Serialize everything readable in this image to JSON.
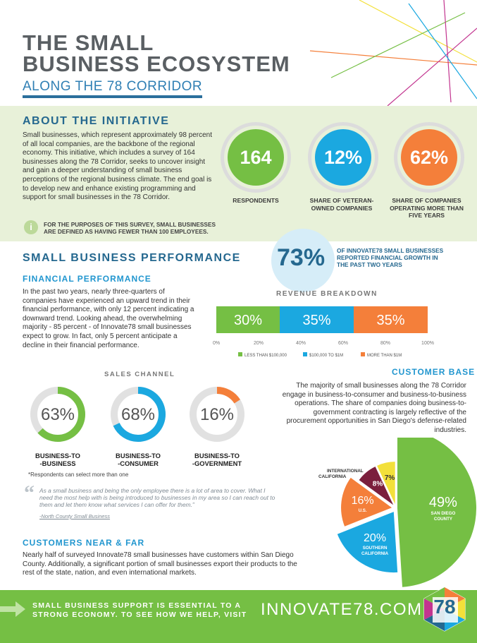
{
  "header": {
    "title_line1": "THE SMALL",
    "title_line2": "BUSINESS ECOSYSTEM",
    "subtitle": "ALONG THE 78 CORRIDOR"
  },
  "initiative": {
    "heading": "ABOUT THE INITIATIVE",
    "body": "Small businesses, which represent approximately 98 percent of all local companies, are the backbone of the regional economy. This initiative, which includes a survey of 164 businesses along the 78 Corridor, seeks to uncover insight and gain a deeper understanding of small business perceptions of the regional business climate. The end goal is to develop new and enhance existing programming and support for small businesses in the 78 Corridor.",
    "note": "FOR THE PURPOSES OF THIS SURVEY, SMALL BUSINESSES ARE DEFINED AS HAVING FEWER THAN 100 EMPLOYEES.",
    "info_icon": "i",
    "stats": [
      {
        "value": "164",
        "label": "RESPONDENTS",
        "color": "#75bf44"
      },
      {
        "value": "12%",
        "label": "SHARE OF VETERAN-OWNED COMPANIES",
        "color": "#1ba8e0"
      },
      {
        "value": "62%",
        "label": "SHARE OF COMPANIES OPERATING MORE THAN FIVE YEARS",
        "color": "#f47f3a"
      }
    ]
  },
  "performance": {
    "heading": "SMALL BUSINESS PERFORMANCE",
    "growth_value": "73%",
    "growth_label": "OF INNOVATE78 SMALL BUSINESSES REPORTED FINANCIAL GROWTH IN THE PAST TWO YEARS",
    "financial_heading": "FINANCIAL PERFORMANCE",
    "financial_body": "In the past two years, nearly three-quarters of companies have experienced an upward trend in their financial performance, with only 12 percent indicating a downward trend. Looking ahead, the overwhelming majority - 85 percent - of Innovate78 small businesses expect to grow. In fact, only 5 percent anticipate a decline in their financial performance."
  },
  "chart_data": {
    "type": "bar",
    "title": "REVENUE BREAKDOWN",
    "orientation": "horizontal-stacked",
    "series": [
      {
        "name": "LESS THAN $100,000",
        "value": 30,
        "label": "30%",
        "color": "#75bf44"
      },
      {
        "name": "$100,000 TO $1M",
        "value": 35,
        "label": "35%",
        "color": "#1ba8e0"
      },
      {
        "name": "MORE THAN $1M",
        "value": 35,
        "label": "35%",
        "color": "#f47f3a"
      }
    ],
    "ticks": [
      "0%",
      "20%",
      "40%",
      "60%",
      "80%",
      "100%"
    ],
    "xlim": [
      0,
      100
    ]
  },
  "sales": {
    "heading": "SALES CHANNEL",
    "note": "*Respondents can select more than one",
    "items": [
      {
        "value": "63%",
        "pct": 63,
        "label1": "BUSINESS-TO",
        "label2": "-BUSINESS",
        "color": "#75bf44"
      },
      {
        "value": "68%",
        "pct": 68,
        "label1": "BUSINESS-TO",
        "label2": "-CONSUMER",
        "color": "#1ba8e0"
      },
      {
        "value": "16%",
        "pct": 16,
        "label1": "BUSINESS-TO",
        "label2": "-GOVERNMENT",
        "color": "#f47f3a"
      }
    ]
  },
  "customer": {
    "heading": "CUSTOMER BASE",
    "body": "The majority of small businesses along the 78 Corridor engage in business-to-consumer and business-to-business operations. The share of companies doing business-to-government contracting is largely reflective of the procurement opportunities in San Diego's defense-related industries.",
    "pie": [
      {
        "value": "49%",
        "pct": 49,
        "label": "SAN DIEGO COUNTY",
        "color": "#75bf44"
      },
      {
        "value": "20%",
        "pct": 20,
        "label": "SOUTHERN CALIFORNIA",
        "color": "#1ba8e0"
      },
      {
        "value": "16%",
        "pct": 16,
        "label": "U.S.",
        "color": "#f47f3a"
      },
      {
        "value": "8%",
        "pct": 8,
        "label": "INTERNATIONAL",
        "color": "#7b1f3d"
      },
      {
        "value": "7%",
        "pct": 7,
        "label": "CALIFORNIA",
        "color": "#f3e03a"
      }
    ],
    "intl_label": "INTERNATIONAL",
    "ca_label": "CALIFORNIA"
  },
  "quote": {
    "mark": "“",
    "text": "As a small business and being the only employee there is a lot of area to cover. What I need the most help with is being introduced to businesses in my area so I can reach out to them and let them know what services I can offer for them.”",
    "source": "-North County Small Business"
  },
  "near_far": {
    "heading": "CUSTOMERS NEAR & FAR",
    "body": "Nearly half of surveyed Innovate78 small businesses have customers within San Diego County. Additionally, a significant portion of small businesses export their products to the rest of the state, nation, and even international markets."
  },
  "footer": {
    "text_line1": "SMALL BUSINESS SUPPORT IS ESSENTIAL TO A",
    "text_line2": "STRONG ECONOMY. TO SEE HOW WE HELP, VISIT",
    "url": "INNOVATE78.COM",
    "logo_text": "78"
  }
}
